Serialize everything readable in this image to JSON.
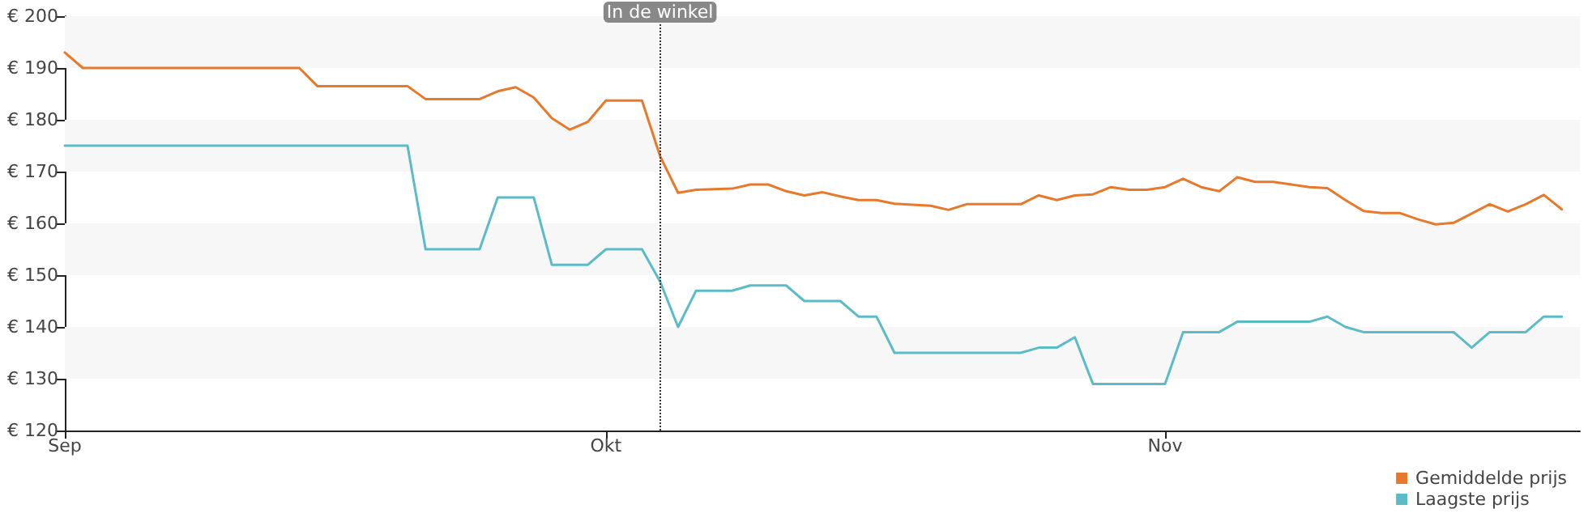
{
  "chart_data": {
    "type": "line",
    "x": [
      "--09-01",
      "--09-02",
      "--09-03",
      "--09-04",
      "--09-05",
      "--09-06",
      "--09-07",
      "--09-08",
      "--09-09",
      "--09-10",
      "--09-11",
      "--09-12",
      "--09-13",
      "--09-14",
      "--09-15",
      "--09-16",
      "--09-17",
      "--09-18",
      "--09-19",
      "--09-20",
      "--09-21",
      "--09-22",
      "--09-23",
      "--09-24",
      "--09-25",
      "--09-26",
      "--09-27",
      "--09-28",
      "--09-29",
      "--09-30",
      "--10-01",
      "--10-02",
      "--10-03",
      "--10-04",
      "--10-05",
      "--10-06",
      "--10-07",
      "--10-08",
      "--10-09",
      "--10-10",
      "--10-11",
      "--10-12",
      "--10-13",
      "--10-14",
      "--10-15",
      "--10-16",
      "--10-17",
      "--10-18",
      "--10-19",
      "--10-20",
      "--10-21",
      "--10-22",
      "--10-23",
      "--10-24",
      "--10-25",
      "--10-26",
      "--10-27",
      "--10-28",
      "--10-29",
      "--10-30",
      "--10-31",
      "--11-01",
      "--11-02",
      "--11-03",
      "--11-04",
      "--11-05",
      "--11-06",
      "--11-07",
      "--11-08",
      "--11-09",
      "--11-10",
      "--11-11",
      "--11-12",
      "--11-13",
      "--11-14",
      "--11-15",
      "--11-16",
      "--11-17",
      "--11-18",
      "--11-19",
      "--11-20",
      "--11-21",
      "--11-22",
      "--11-23"
    ],
    "series": [
      {
        "name": "Gemiddelde prijs",
        "color": "#e8792a",
        "values": [
          193,
          190,
          190,
          190,
          190,
          190,
          190,
          190,
          190,
          190,
          190,
          190,
          190,
          190,
          186.5,
          186.5,
          186.5,
          186.5,
          186.5,
          186.5,
          184,
          184,
          184,
          184,
          185.5,
          186.3,
          184.3,
          180.3,
          178.1,
          179.6,
          183.7,
          183.7,
          183.7,
          173,
          165.9,
          166.5,
          166.6,
          166.7,
          167.5,
          167.5,
          166.2,
          165.4,
          166,
          165.2,
          164.5,
          164.5,
          163.8,
          163.6,
          163.4,
          162.6,
          163.7,
          163.7,
          163.7,
          163.7,
          165.4,
          164.5,
          165.4,
          165.6,
          167,
          166.5,
          166.5,
          167,
          168.6,
          167,
          166.2,
          168.9,
          168,
          168,
          167.5,
          167,
          166.8,
          164.5,
          162.4,
          162,
          162,
          160.8,
          159.8,
          160.1,
          161.9,
          163.7,
          162.3,
          163.7,
          165.5,
          162.7
        ]
      },
      {
        "name": "Laagste prijs",
        "color": "#5bbcc7",
        "values": [
          175,
          175,
          175,
          175,
          175,
          175,
          175,
          175,
          175,
          175,
          175,
          175,
          175,
          175,
          175,
          175,
          175,
          175,
          175,
          175,
          155,
          155,
          155,
          155,
          165,
          165,
          165,
          152,
          152,
          152,
          155,
          155,
          155,
          148.8,
          140,
          147,
          147,
          147,
          148,
          148,
          148,
          145,
          145,
          145,
          142,
          142,
          135,
          135,
          135,
          135,
          135,
          135,
          135,
          135,
          136,
          136,
          138,
          129,
          129,
          129,
          129,
          129,
          139,
          139,
          139,
          141,
          141,
          141,
          141,
          141,
          142,
          140,
          139,
          139,
          139,
          139,
          139,
          139,
          136,
          139,
          139,
          139,
          142,
          142
        ]
      }
    ],
    "xlim": [
      "--09-01",
      "--11-24"
    ],
    "xticks": [
      {
        "value": "--09-01",
        "label": "Sep"
      },
      {
        "value": "--10-01",
        "label": "Okt"
      },
      {
        "value": "--11-01",
        "label": "Nov"
      }
    ],
    "ylim": [
      120,
      200
    ],
    "yticks": [
      {
        "value": 120,
        "label": "€ 120"
      },
      {
        "value": 130,
        "label": "€ 130"
      },
      {
        "value": 140,
        "label": "€ 140"
      },
      {
        "value": 150,
        "label": "€ 150"
      },
      {
        "value": 160,
        "label": "€ 160"
      },
      {
        "value": 170,
        "label": "€ 170"
      },
      {
        "value": 180,
        "label": "€ 180"
      },
      {
        "value": 190,
        "label": "€ 190"
      },
      {
        "value": 200,
        "label": "€ 200"
      }
    ],
    "ref_lines": [
      {
        "axis": "x",
        "value": "--10-04",
        "label": "In de winkel",
        "line_style": "dotted"
      }
    ],
    "bands": [
      {
        "axis": "y",
        "from": 130,
        "to": 140,
        "color": "#f7f7f7"
      },
      {
        "axis": "y",
        "from": 150,
        "to": 160,
        "color": "#f7f7f7"
      },
      {
        "axis": "y",
        "from": 170,
        "to": 180,
        "color": "#f7f7f7"
      },
      {
        "axis": "y",
        "from": 190,
        "to": 200,
        "color": "#f7f7f7"
      }
    ],
    "legend": "bottom right",
    "marker": "none",
    "line_style": "solid"
  }
}
